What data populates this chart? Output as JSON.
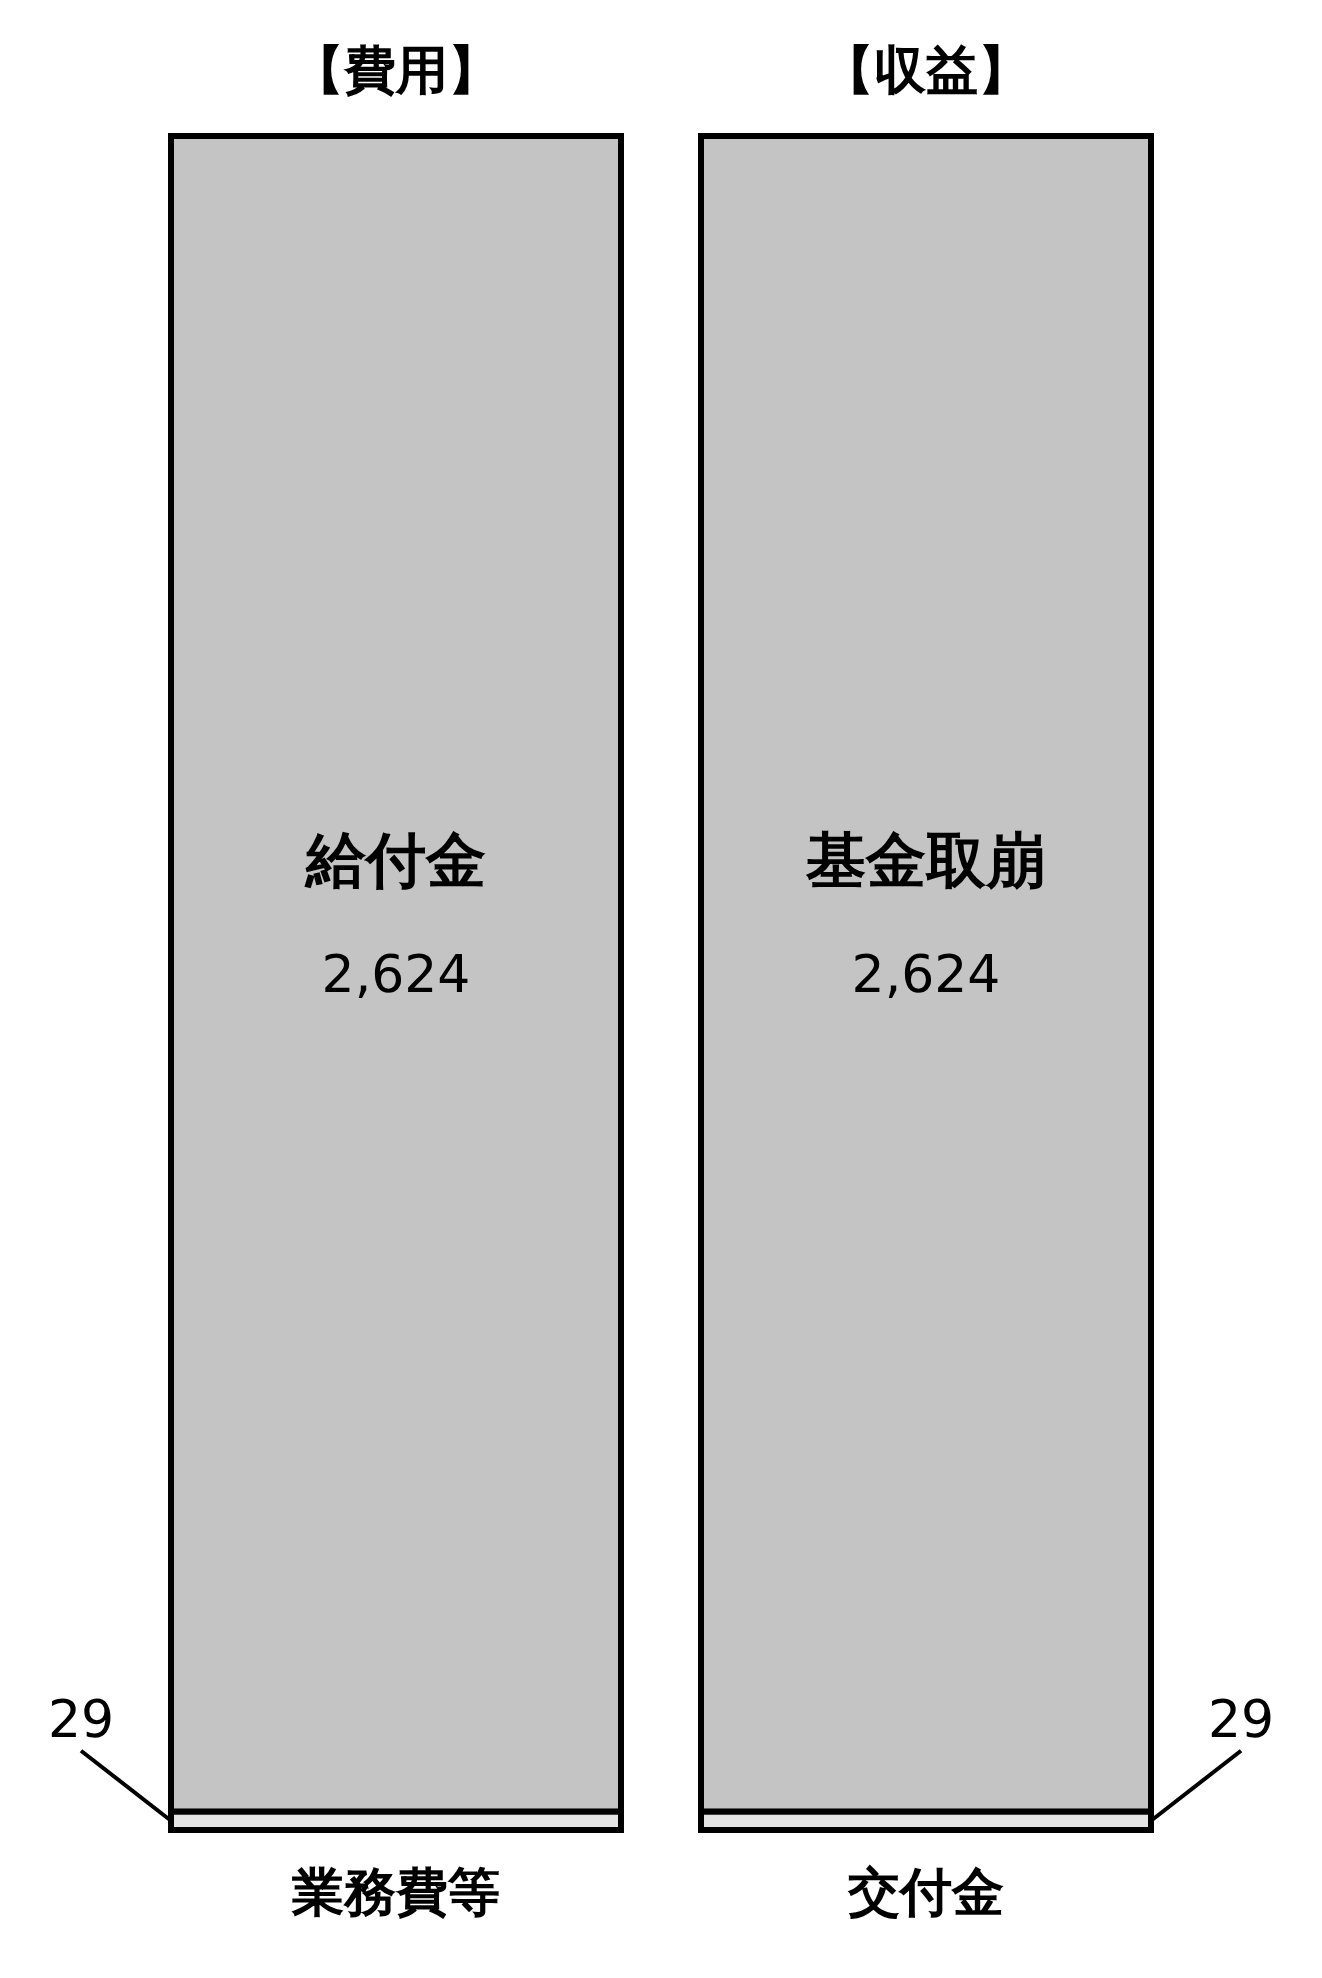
{
  "chart_data": {
    "type": "bar",
    "stacked": true,
    "categories": [
      "【費用】",
      "【収益】"
    ],
    "series": [
      {
        "color": "#e4e4e4",
        "values": [
          29,
          29
        ],
        "value_labels": [
          "29",
          "29"
        ]
      },
      {
        "color": "#c4c4c4",
        "values": [
          2624,
          2624
        ],
        "value_labels": [
          "2,624",
          "2,624"
        ]
      }
    ],
    "annotations": [
      "給付金",
      "基金取崩",
      {
        "text": "業務費等",
        "x": "【費用】",
        "y": 14.5
      },
      {
        "text": "交付金",
        "x": "【収益】",
        "y": 14.5
      }
    ]
  }
}
